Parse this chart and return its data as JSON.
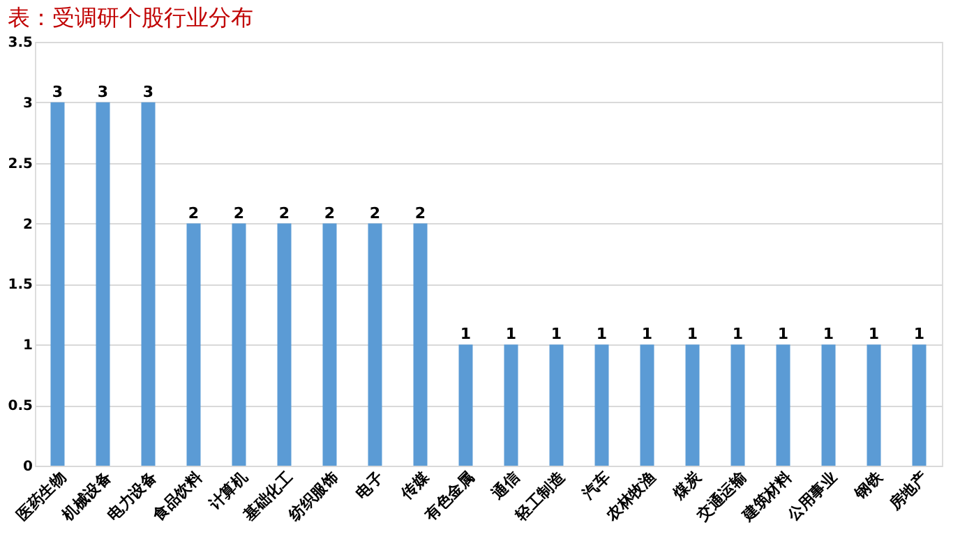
{
  "chart_data": {
    "type": "bar",
    "title": "表：受调研个股行业分布",
    "categories": [
      "医药生物",
      "机械设备",
      "电力设备",
      "食品饮料",
      "计算机",
      "基础化工",
      "纺织服饰",
      "电子",
      "传媒",
      "有色金属",
      "通信",
      "轻工制造",
      "汽车",
      "农林牧渔",
      "煤炭",
      "交通运输",
      "建筑材料",
      "公用事业",
      "钢铁",
      "房地产"
    ],
    "values": [
      3,
      3,
      3,
      2,
      2,
      2,
      2,
      2,
      2,
      1,
      1,
      1,
      1,
      1,
      1,
      1,
      1,
      1,
      1,
      1
    ],
    "color": "#5b9bd5",
    "ylim": [
      0,
      3.5
    ],
    "yticks": [
      0,
      0.5,
      1,
      1.5,
      2,
      2.5,
      3,
      3.5
    ],
    "grid": "y",
    "data_labels": true
  }
}
